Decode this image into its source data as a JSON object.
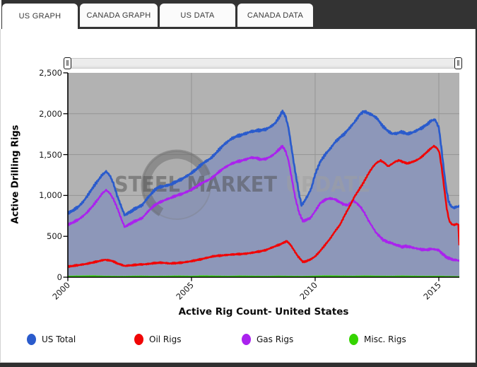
{
  "tabs": [
    {
      "label": "US GRAPH",
      "active": true
    },
    {
      "label": "CANADA GRAPH",
      "active": false
    },
    {
      "label": "US DATA",
      "active": false
    },
    {
      "label": "CANADA DATA",
      "active": false
    }
  ],
  "icons": {
    "range_handle": "‖"
  },
  "watermark": {
    "primary": "STEEL MARKET",
    "secondary": "UPDATE"
  },
  "chart_data": {
    "type": "line",
    "title": "Active Rig Count- United States",
    "xlabel": "",
    "ylabel": "Active Drilling Rigs",
    "xlim": [
      2000,
      2015.83
    ],
    "ylim": [
      0,
      2500
    ],
    "yticks": [
      2500,
      2000,
      1500,
      1000,
      500,
      0
    ],
    "ytick_labels": [
      "2,500",
      "2,000",
      "1,500",
      "1,000",
      "500",
      "0"
    ],
    "xticks": [
      2000,
      2005,
      2010,
      2015
    ],
    "xtick_labels": [
      "2000",
      "2005",
      "2010",
      "2015"
    ],
    "grid": true,
    "legend_position": "bottom",
    "style": {
      "plot_bg": "#b2b2b2",
      "grid_color": "#949494",
      "area_fill": "#8d97b9",
      "axis_color": "#000000",
      "watermark_dark": "#4f4f4f",
      "watermark_light": "#9f9f9f"
    },
    "series": [
      {
        "name": "US Total",
        "color": "#2a5bcc",
        "filled": true,
        "points": [
          [
            2000.0,
            780
          ],
          [
            2000.2,
            815
          ],
          [
            2000.4,
            855
          ],
          [
            2000.6,
            915
          ],
          [
            2000.8,
            1000
          ],
          [
            2001.0,
            1090
          ],
          [
            2001.2,
            1175
          ],
          [
            2001.4,
            1255
          ],
          [
            2001.55,
            1293
          ],
          [
            2001.7,
            1245
          ],
          [
            2001.85,
            1140
          ],
          [
            2002.0,
            995
          ],
          [
            2002.15,
            870
          ],
          [
            2002.3,
            760
          ],
          [
            2002.45,
            785
          ],
          [
            2002.6,
            815
          ],
          [
            2002.8,
            850
          ],
          [
            2003.0,
            880
          ],
          [
            2003.2,
            960
          ],
          [
            2003.4,
            1030
          ],
          [
            2003.6,
            1090
          ],
          [
            2003.8,
            1110
          ],
          [
            2004.0,
            1120
          ],
          [
            2004.2,
            1140
          ],
          [
            2004.4,
            1170
          ],
          [
            2004.6,
            1200
          ],
          [
            2004.8,
            1235
          ],
          [
            2005.0,
            1275
          ],
          [
            2005.2,
            1320
          ],
          [
            2005.4,
            1380
          ],
          [
            2005.6,
            1420
          ],
          [
            2005.8,
            1460
          ],
          [
            2006.0,
            1520
          ],
          [
            2006.2,
            1590
          ],
          [
            2006.4,
            1645
          ],
          [
            2006.6,
            1690
          ],
          [
            2006.8,
            1720
          ],
          [
            2007.0,
            1740
          ],
          [
            2007.2,
            1760
          ],
          [
            2007.4,
            1780
          ],
          [
            2007.6,
            1790
          ],
          [
            2007.8,
            1800
          ],
          [
            2008.0,
            1810
          ],
          [
            2008.2,
            1840
          ],
          [
            2008.4,
            1890
          ],
          [
            2008.55,
            1960
          ],
          [
            2008.68,
            2030
          ],
          [
            2008.8,
            1970
          ],
          [
            2008.92,
            1830
          ],
          [
            2009.05,
            1570
          ],
          [
            2009.2,
            1280
          ],
          [
            2009.35,
            1020
          ],
          [
            2009.45,
            880
          ],
          [
            2009.55,
            920
          ],
          [
            2009.7,
            1000
          ],
          [
            2009.85,
            1090
          ],
          [
            2010.0,
            1260
          ],
          [
            2010.2,
            1410
          ],
          [
            2010.4,
            1500
          ],
          [
            2010.6,
            1570
          ],
          [
            2010.8,
            1650
          ],
          [
            2011.0,
            1710
          ],
          [
            2011.2,
            1760
          ],
          [
            2011.4,
            1830
          ],
          [
            2011.6,
            1900
          ],
          [
            2011.8,
            1990
          ],
          [
            2011.95,
            2025
          ],
          [
            2012.1,
            2015
          ],
          [
            2012.3,
            1985
          ],
          [
            2012.5,
            1945
          ],
          [
            2012.7,
            1860
          ],
          [
            2012.9,
            1800
          ],
          [
            2013.1,
            1755
          ],
          [
            2013.3,
            1760
          ],
          [
            2013.5,
            1780
          ],
          [
            2013.7,
            1755
          ],
          [
            2013.9,
            1765
          ],
          [
            2014.1,
            1795
          ],
          [
            2014.3,
            1825
          ],
          [
            2014.5,
            1865
          ],
          [
            2014.7,
            1915
          ],
          [
            2014.85,
            1930
          ],
          [
            2015.0,
            1830
          ],
          [
            2015.1,
            1590
          ],
          [
            2015.2,
            1320
          ],
          [
            2015.3,
            1080
          ],
          [
            2015.4,
            920
          ],
          [
            2015.5,
            865
          ],
          [
            2015.6,
            850
          ],
          [
            2015.7,
            858
          ],
          [
            2015.83,
            868
          ]
        ]
      },
      {
        "name": "Oil Rigs",
        "color": "#f00505",
        "filled": false,
        "points": [
          [
            2000.0,
            128
          ],
          [
            2000.3,
            142
          ],
          [
            2000.6,
            155
          ],
          [
            2000.9,
            172
          ],
          [
            2001.2,
            192
          ],
          [
            2001.5,
            214
          ],
          [
            2001.8,
            198
          ],
          [
            2002.0,
            168
          ],
          [
            2002.3,
            138
          ],
          [
            2002.6,
            146
          ],
          [
            2002.9,
            155
          ],
          [
            2003.2,
            160
          ],
          [
            2003.5,
            172
          ],
          [
            2003.8,
            178
          ],
          [
            2004.1,
            168
          ],
          [
            2004.4,
            172
          ],
          [
            2004.7,
            182
          ],
          [
            2005.0,
            196
          ],
          [
            2005.3,
            214
          ],
          [
            2005.6,
            236
          ],
          [
            2005.9,
            256
          ],
          [
            2006.2,
            266
          ],
          [
            2006.5,
            274
          ],
          [
            2006.8,
            280
          ],
          [
            2007.1,
            286
          ],
          [
            2007.4,
            296
          ],
          [
            2007.7,
            312
          ],
          [
            2008.0,
            332
          ],
          [
            2008.3,
            368
          ],
          [
            2008.6,
            404
          ],
          [
            2008.85,
            442
          ],
          [
            2009.0,
            398
          ],
          [
            2009.15,
            326
          ],
          [
            2009.3,
            258
          ],
          [
            2009.5,
            188
          ],
          [
            2009.65,
            196
          ],
          [
            2009.8,
            216
          ],
          [
            2010.0,
            254
          ],
          [
            2010.2,
            320
          ],
          [
            2010.4,
            395
          ],
          [
            2010.6,
            470
          ],
          [
            2010.8,
            560
          ],
          [
            2011.0,
            640
          ],
          [
            2011.15,
            730
          ],
          [
            2011.3,
            815
          ],
          [
            2011.45,
            900
          ],
          [
            2011.6,
            990
          ],
          [
            2011.75,
            1060
          ],
          [
            2011.9,
            1130
          ],
          [
            2012.05,
            1210
          ],
          [
            2012.2,
            1290
          ],
          [
            2012.35,
            1355
          ],
          [
            2012.5,
            1405
          ],
          [
            2012.65,
            1425
          ],
          [
            2012.8,
            1400
          ],
          [
            2012.95,
            1355
          ],
          [
            2013.1,
            1385
          ],
          [
            2013.25,
            1415
          ],
          [
            2013.4,
            1430
          ],
          [
            2013.55,
            1410
          ],
          [
            2013.7,
            1392
          ],
          [
            2013.85,
            1402
          ],
          [
            2014.0,
            1418
          ],
          [
            2014.2,
            1448
          ],
          [
            2014.4,
            1498
          ],
          [
            2014.6,
            1555
          ],
          [
            2014.8,
            1605
          ],
          [
            2014.92,
            1580
          ],
          [
            2015.02,
            1530
          ],
          [
            2015.12,
            1330
          ],
          [
            2015.22,
            1080
          ],
          [
            2015.32,
            840
          ],
          [
            2015.42,
            690
          ],
          [
            2015.52,
            648
          ],
          [
            2015.62,
            640
          ],
          [
            2015.72,
            650
          ],
          [
            2015.79,
            645
          ],
          [
            2015.83,
            390
          ]
        ]
      },
      {
        "name": "Gas Rigs",
        "color": "#aa22ee",
        "filled": false,
        "points": [
          [
            2000.0,
            640
          ],
          [
            2000.2,
            668
          ],
          [
            2000.4,
            700
          ],
          [
            2000.6,
            742
          ],
          [
            2000.8,
            800
          ],
          [
            2001.0,
            868
          ],
          [
            2001.2,
            945
          ],
          [
            2001.4,
            1028
          ],
          [
            2001.55,
            1065
          ],
          [
            2001.7,
            1028
          ],
          [
            2001.85,
            950
          ],
          [
            2002.0,
            848
          ],
          [
            2002.15,
            720
          ],
          [
            2002.3,
            616
          ],
          [
            2002.45,
            640
          ],
          [
            2002.6,
            668
          ],
          [
            2002.8,
            695
          ],
          [
            2003.0,
            722
          ],
          [
            2003.2,
            790
          ],
          [
            2003.4,
            852
          ],
          [
            2003.6,
            898
          ],
          [
            2003.8,
            928
          ],
          [
            2004.0,
            952
          ],
          [
            2004.2,
            975
          ],
          [
            2004.4,
            998
          ],
          [
            2004.6,
            1018
          ],
          [
            2004.8,
            1042
          ],
          [
            2005.0,
            1072
          ],
          [
            2005.2,
            1108
          ],
          [
            2005.4,
            1148
          ],
          [
            2005.6,
            1178
          ],
          [
            2005.8,
            1208
          ],
          [
            2006.0,
            1258
          ],
          [
            2006.2,
            1312
          ],
          [
            2006.4,
            1352
          ],
          [
            2006.6,
            1385
          ],
          [
            2006.8,
            1408
          ],
          [
            2007.0,
            1425
          ],
          [
            2007.2,
            1442
          ],
          [
            2007.4,
            1462
          ],
          [
            2007.6,
            1458
          ],
          [
            2007.8,
            1442
          ],
          [
            2008.0,
            1448
          ],
          [
            2008.2,
            1475
          ],
          [
            2008.4,
            1520
          ],
          [
            2008.55,
            1568
          ],
          [
            2008.68,
            1602
          ],
          [
            2008.8,
            1545
          ],
          [
            2008.92,
            1430
          ],
          [
            2009.05,
            1215
          ],
          [
            2009.2,
            965
          ],
          [
            2009.35,
            790
          ],
          [
            2009.5,
            688
          ],
          [
            2009.65,
            702
          ],
          [
            2009.8,
            722
          ],
          [
            2010.0,
            808
          ],
          [
            2010.2,
            905
          ],
          [
            2010.4,
            948
          ],
          [
            2010.6,
            965
          ],
          [
            2010.8,
            952
          ],
          [
            2011.0,
            918
          ],
          [
            2011.15,
            892
          ],
          [
            2011.3,
            878
          ],
          [
            2011.45,
            918
          ],
          [
            2011.55,
            932
          ],
          [
            2011.7,
            902
          ],
          [
            2011.85,
            852
          ],
          [
            2012.0,
            782
          ],
          [
            2012.15,
            698
          ],
          [
            2012.3,
            622
          ],
          [
            2012.45,
            552
          ],
          [
            2012.6,
            500
          ],
          [
            2012.75,
            458
          ],
          [
            2012.9,
            432
          ],
          [
            2013.05,
            422
          ],
          [
            2013.2,
            402
          ],
          [
            2013.35,
            388
          ],
          [
            2013.5,
            372
          ],
          [
            2013.65,
            378
          ],
          [
            2013.8,
            372
          ],
          [
            2013.95,
            362
          ],
          [
            2014.1,
            350
          ],
          [
            2014.3,
            340
          ],
          [
            2014.5,
            336
          ],
          [
            2014.7,
            344
          ],
          [
            2014.85,
            342
          ],
          [
            2015.0,
            328
          ],
          [
            2015.15,
            286
          ],
          [
            2015.3,
            246
          ],
          [
            2015.45,
            226
          ],
          [
            2015.6,
            214
          ],
          [
            2015.72,
            208
          ],
          [
            2015.83,
            200
          ]
        ]
      },
      {
        "name": "Misc. Rigs",
        "color": "#35d400",
        "filled": false,
        "points": [
          [
            2000.0,
            7
          ],
          [
            2000.5,
            10
          ],
          [
            2001.0,
            12
          ],
          [
            2001.5,
            8
          ],
          [
            2002.0,
            5
          ],
          [
            2002.5,
            7
          ],
          [
            2003.0,
            9
          ],
          [
            2003.5,
            6
          ],
          [
            2004.0,
            8
          ],
          [
            2004.5,
            10
          ],
          [
            2005.0,
            7
          ],
          [
            2005.5,
            12
          ],
          [
            2006.0,
            9
          ],
          [
            2006.5,
            7
          ],
          [
            2007.0,
            10
          ],
          [
            2007.5,
            8
          ],
          [
            2008.0,
            6
          ],
          [
            2008.5,
            9
          ],
          [
            2009.0,
            7
          ],
          [
            2009.5,
            5
          ],
          [
            2010.0,
            9
          ],
          [
            2010.5,
            12
          ],
          [
            2011.0,
            10
          ],
          [
            2011.5,
            8
          ],
          [
            2012.0,
            11
          ],
          [
            2012.5,
            9
          ],
          [
            2013.0,
            7
          ],
          [
            2013.5,
            10
          ],
          [
            2014.0,
            8
          ],
          [
            2014.5,
            6
          ],
          [
            2015.0,
            7
          ],
          [
            2015.4,
            4
          ],
          [
            2015.83,
            3
          ]
        ]
      }
    ]
  }
}
